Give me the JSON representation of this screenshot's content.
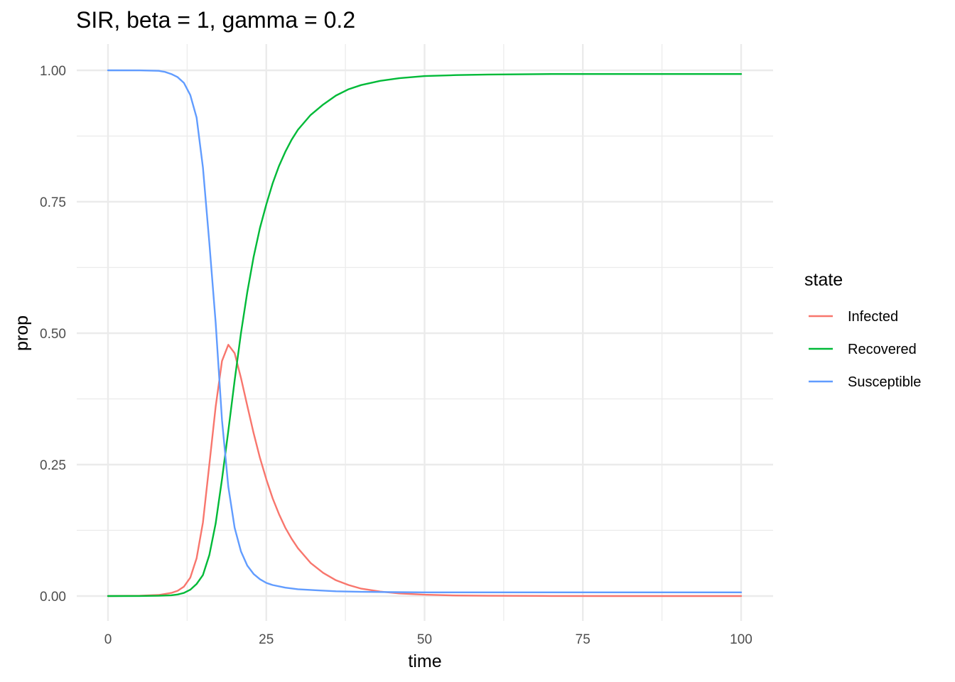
{
  "chart_data": {
    "type": "line",
    "title": "SIR, beta = 1, gamma = 0.2",
    "xlabel": "time",
    "ylabel": "prop",
    "xlim": [
      0,
      100
    ],
    "ylim": [
      0,
      1
    ],
    "x_ticks": [
      0,
      25,
      50,
      75,
      100
    ],
    "x_tick_labels": [
      "0",
      "25",
      "50",
      "75",
      "100"
    ],
    "y_ticks": [
      0,
      0.25,
      0.5,
      0.75,
      1
    ],
    "y_tick_labels": [
      "0.00",
      "0.25",
      "0.50",
      "0.75",
      "1.00"
    ],
    "grid": true,
    "legend": {
      "title": "state",
      "position": "right"
    },
    "series": [
      {
        "name": "Infected",
        "color": "#f8766d",
        "x": [
          0,
          5,
          8,
          10,
          11,
          12,
          13,
          14,
          15,
          16,
          17,
          18,
          19,
          20,
          21,
          22,
          23,
          24,
          25,
          26,
          27,
          28,
          29,
          30,
          32,
          34,
          36,
          38,
          40,
          43,
          46,
          50,
          55,
          60,
          70,
          80,
          90,
          100
        ],
        "y": [
          0.0,
          0.0005,
          0.002,
          0.006,
          0.01,
          0.018,
          0.035,
          0.072,
          0.14,
          0.25,
          0.36,
          0.447,
          0.478,
          0.462,
          0.415,
          0.362,
          0.31,
          0.263,
          0.222,
          0.186,
          0.156,
          0.13,
          0.109,
          0.091,
          0.063,
          0.044,
          0.03,
          0.021,
          0.014,
          0.0085,
          0.005,
          0.0025,
          0.0011,
          0.0005,
          0.0001,
          0.0,
          0.0,
          0.0
        ]
      },
      {
        "name": "Recovered",
        "color": "#00ba38",
        "x": [
          0,
          5,
          8,
          10,
          11,
          12,
          13,
          14,
          15,
          16,
          17,
          18,
          19,
          20,
          21,
          22,
          23,
          24,
          25,
          26,
          27,
          28,
          29,
          30,
          32,
          34,
          36,
          38,
          40,
          43,
          46,
          50,
          55,
          60,
          70,
          80,
          90,
          100
        ],
        "y": [
          0.0,
          0.0002,
          0.0006,
          0.0015,
          0.003,
          0.006,
          0.012,
          0.023,
          0.04,
          0.078,
          0.138,
          0.222,
          0.314,
          0.41,
          0.5,
          0.578,
          0.645,
          0.7,
          0.745,
          0.785,
          0.818,
          0.845,
          0.868,
          0.887,
          0.915,
          0.935,
          0.952,
          0.964,
          0.972,
          0.98,
          0.985,
          0.989,
          0.991,
          0.992,
          0.993,
          0.993,
          0.993,
          0.993
        ]
      },
      {
        "name": "Susceptible",
        "color": "#619cff",
        "x": [
          0,
          5,
          8,
          9,
          10,
          11,
          12,
          13,
          14,
          15,
          16,
          17,
          18,
          19,
          20,
          21,
          22,
          23,
          24,
          25,
          26,
          28,
          30,
          33,
          36,
          40,
          45,
          50,
          60,
          70,
          80,
          90,
          100
        ],
        "y": [
          1.0,
          0.9998,
          0.999,
          0.997,
          0.993,
          0.987,
          0.976,
          0.953,
          0.91,
          0.815,
          0.672,
          0.52,
          0.335,
          0.208,
          0.13,
          0.085,
          0.058,
          0.042,
          0.032,
          0.025,
          0.021,
          0.016,
          0.013,
          0.011,
          0.009,
          0.008,
          0.0075,
          0.007,
          0.007,
          0.007,
          0.007,
          0.007,
          0.007
        ]
      }
    ]
  }
}
